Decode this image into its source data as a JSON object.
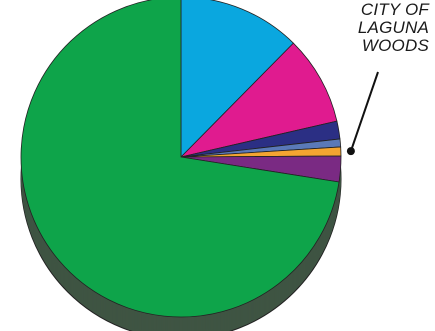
{
  "chart_data": {
    "type": "pie",
    "style": "3d",
    "slices": [
      {
        "value": 12.4,
        "color": "#0aa7df"
      },
      {
        "value": 9.0,
        "color": "#e01b8f"
      },
      {
        "value": 1.8,
        "color": "#2b2f84"
      },
      {
        "value": 0.8,
        "color": "#5a79b8"
      },
      {
        "value": 0.9,
        "color": "#f4a531"
      },
      {
        "value": 2.6,
        "color": "#7a2a83"
      },
      {
        "value": 72.5,
        "color": "#0ea44a"
      }
    ],
    "annotation": {
      "lines": [
        "CITY OF",
        "LAGUNA",
        "WOODS"
      ],
      "points_to_slice": 4
    },
    "colors": {
      "side": "#3f5443",
      "edge": "#222222"
    }
  }
}
